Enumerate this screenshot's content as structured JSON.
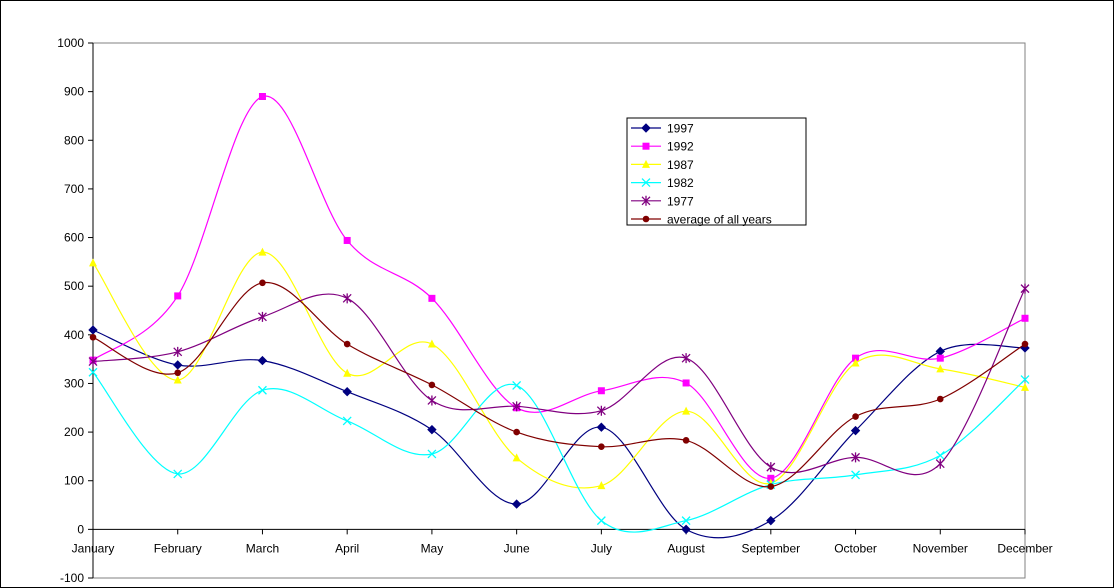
{
  "chart_data": {
    "type": "line",
    "title": "",
    "xlabel": "",
    "ylabel": "",
    "categories": [
      "January",
      "February",
      "March",
      "April",
      "May",
      "June",
      "July",
      "August",
      "September",
      "October",
      "November",
      "December"
    ],
    "ylim": [
      -100,
      1000
    ],
    "yticks": [
      -100,
      0,
      100,
      200,
      300,
      400,
      500,
      600,
      700,
      800,
      900,
      1000
    ],
    "grid": false,
    "legend_position": "top-right",
    "series": [
      {
        "name": "1997",
        "color": "#000080",
        "marker": "diamond",
        "values": [
          410,
          338,
          347,
          283,
          205,
          52,
          210,
          0,
          18,
          203,
          366,
          373
        ]
      },
      {
        "name": "1992",
        "color": "#ff00ff",
        "marker": "square",
        "values": [
          348,
          480,
          890,
          594,
          475,
          250,
          285,
          301,
          105,
          352,
          352,
          434
        ]
      },
      {
        "name": "1987",
        "color": "#ffff00",
        "marker": "triangle",
        "values": [
          548,
          307,
          570,
          321,
          381,
          147,
          90,
          243,
          95,
          342,
          330,
          292
        ]
      },
      {
        "name": "1982",
        "color": "#00ffff",
        "marker": "x",
        "values": [
          323,
          114,
          286,
          223,
          155,
          296,
          18,
          18,
          92,
          112,
          152,
          308
        ]
      },
      {
        "name": "1977",
        "color": "#800080",
        "marker": "star",
        "values": [
          345,
          365,
          437,
          475,
          265,
          253,
          244,
          352,
          128,
          148,
          135,
          495
        ]
      },
      {
        "name": "average of all years",
        "color": "#800000",
        "marker": "circle",
        "values": [
          395,
          322,
          507,
          381,
          297,
          200,
          170,
          183,
          88,
          232,
          268,
          381
        ]
      }
    ]
  }
}
